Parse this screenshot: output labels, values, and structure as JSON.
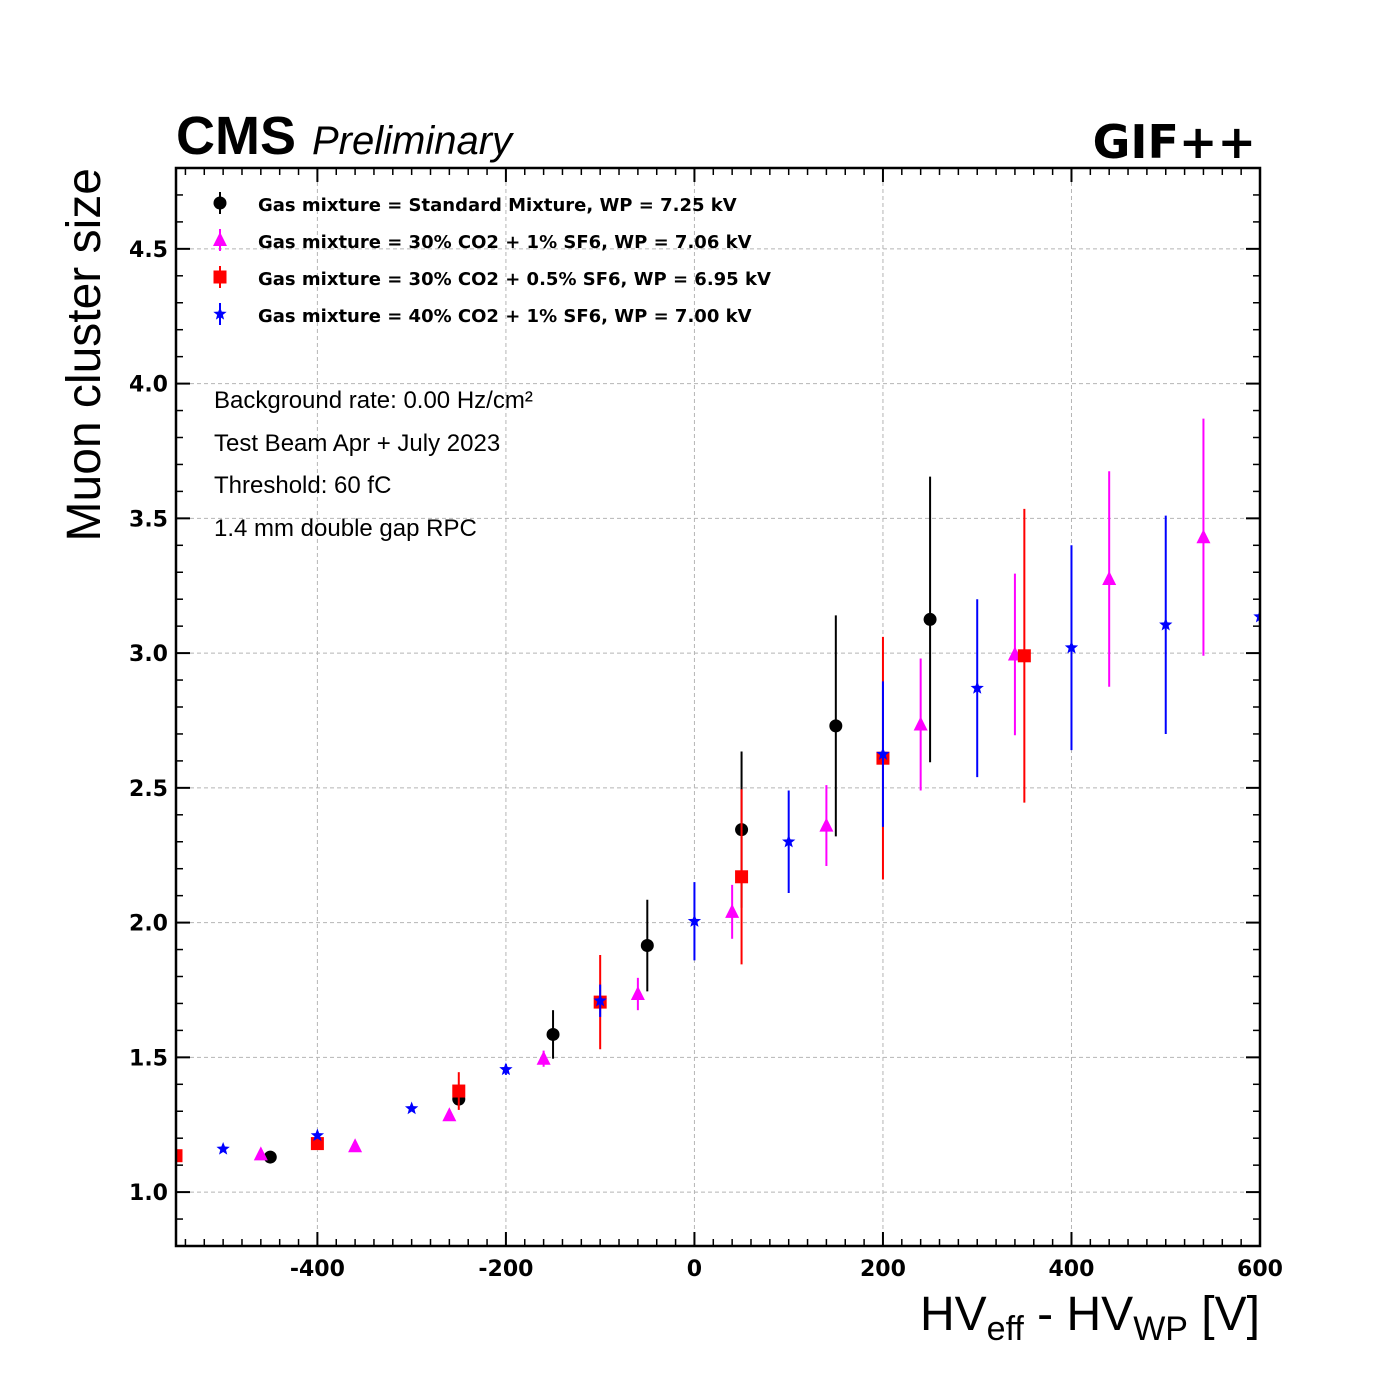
{
  "header": {
    "experiment": "CMS",
    "status": "Preliminary",
    "facility": "GIF++"
  },
  "info_lines": [
    "Background rate: 0.00 Hz/cm²",
    "Test Beam Apr + July 2023",
    "Threshold: 60 fC",
    "1.4 mm double gap RPC"
  ],
  "chart_data": {
    "type": "scatter",
    "xlabel_main": "HV",
    "xlabel_sub1": "eff",
    "xlabel_mid": " - HV",
    "xlabel_sub2": "WP",
    "xlabel_unit": " [V]",
    "ylabel": "Muon cluster size",
    "xlim": [
      -550,
      600
    ],
    "ylim": [
      0.8,
      4.8
    ],
    "xticks": [
      -400,
      -200,
      0,
      200,
      400,
      600
    ],
    "yticks": [
      1.0,
      1.5,
      2.0,
      2.5,
      3.0,
      3.5,
      4.0,
      4.5
    ],
    "grid": true,
    "legend_position": "top-left",
    "series": [
      {
        "name": "Gas mixture = Standard Mixture, WP = 7.25 kV",
        "color": "#000000",
        "marker": "circle",
        "points": [
          {
            "x": -450,
            "y": 1.13,
            "err": 0.01
          },
          {
            "x": -250,
            "y": 1.345,
            "err": 0.02
          },
          {
            "x": -150,
            "y": 1.585,
            "err": 0.09
          },
          {
            "x": -50,
            "y": 1.915,
            "err": 0.17
          },
          {
            "x": 50,
            "y": 2.345,
            "err": 0.29
          },
          {
            "x": 150,
            "y": 2.73,
            "err": 0.41
          },
          {
            "x": 250,
            "y": 3.125,
            "err": 0.53
          }
        ]
      },
      {
        "name": "Gas mixture = 30% CO2 + 1% SF6, WP = 7.06 kV",
        "color": "#ff00ff",
        "marker": "triangle",
        "points": [
          {
            "x": -460,
            "y": 1.14,
            "err": 0.01
          },
          {
            "x": -360,
            "y": 1.17,
            "err": 0.01
          },
          {
            "x": -260,
            "y": 1.285,
            "err": 0.015
          },
          {
            "x": -160,
            "y": 1.495,
            "err": 0.03
          },
          {
            "x": -60,
            "y": 1.735,
            "err": 0.06
          },
          {
            "x": 40,
            "y": 2.04,
            "err": 0.1
          },
          {
            "x": 140,
            "y": 2.36,
            "err": 0.15
          },
          {
            "x": 240,
            "y": 2.735,
            "err": 0.245
          },
          {
            "x": 340,
            "y": 2.995,
            "err": 0.3
          },
          {
            "x": 440,
            "y": 3.275,
            "err": 0.4
          },
          {
            "x": 540,
            "y": 3.43,
            "err": 0.44
          }
        ]
      },
      {
        "name": "Gas mixture = 30% CO2 + 0.5% SF6, WP = 6.95 kV",
        "color": "#ff0000",
        "marker": "square",
        "points": [
          {
            "x": -550,
            "y": 1.135,
            "err": 0.01
          },
          {
            "x": -400,
            "y": 1.18,
            "err": 0.01
          },
          {
            "x": -250,
            "y": 1.375,
            "err": 0.07
          },
          {
            "x": -100,
            "y": 1.705,
            "err": 0.175
          },
          {
            "x": 50,
            "y": 2.17,
            "err": 0.325
          },
          {
            "x": 200,
            "y": 2.61,
            "err": 0.45
          },
          {
            "x": 350,
            "y": 2.99,
            "err": 0.545
          }
        ]
      },
      {
        "name": "Gas mixture = 40% CO2 + 1% SF6, WP = 7.00 kV",
        "color": "#0000ff",
        "marker": "star",
        "points": [
          {
            "x": -500,
            "y": 1.16,
            "err": 0.01
          },
          {
            "x": -400,
            "y": 1.21,
            "err": 0.01
          },
          {
            "x": -300,
            "y": 1.31,
            "err": 0.01
          },
          {
            "x": -200,
            "y": 1.455,
            "err": 0.02
          },
          {
            "x": -100,
            "y": 1.71,
            "err": 0.06
          },
          {
            "x": 0,
            "y": 2.005,
            "err": 0.145
          },
          {
            "x": 100,
            "y": 2.3,
            "err": 0.19
          },
          {
            "x": 200,
            "y": 2.625,
            "err": 0.27
          },
          {
            "x": 300,
            "y": 2.87,
            "err": 0.33
          },
          {
            "x": 400,
            "y": 3.02,
            "err": 0.38
          },
          {
            "x": 500,
            "y": 3.105,
            "err": 0.405
          },
          {
            "x": 600,
            "y": 3.135,
            "err": 0.01
          }
        ]
      }
    ]
  }
}
